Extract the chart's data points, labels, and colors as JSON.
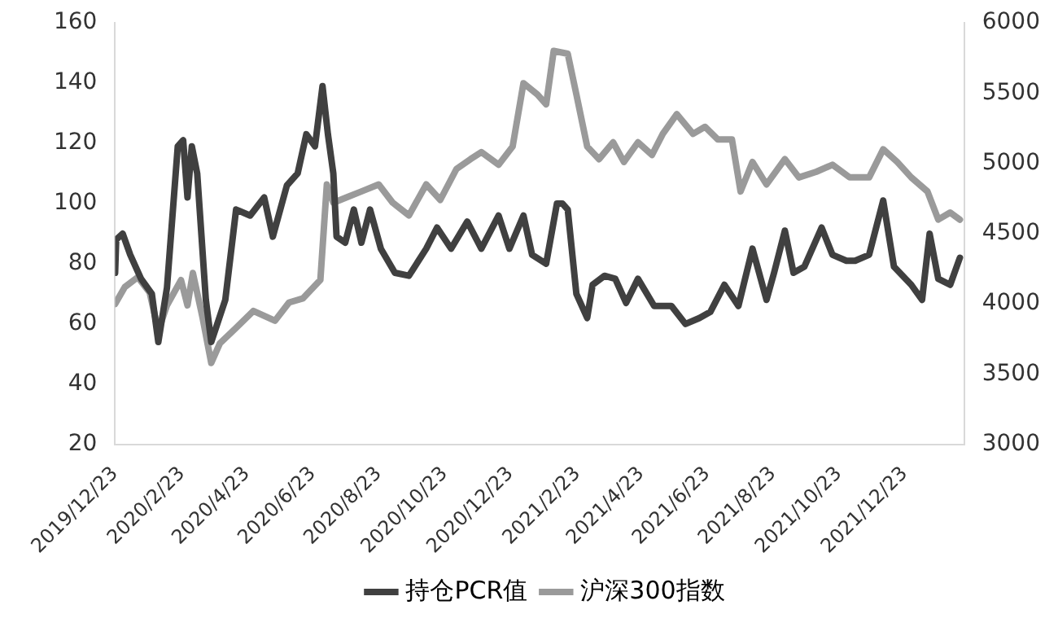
{
  "chart_data": {
    "type": "line",
    "xlim": [
      "2019-12-23",
      "2022-02-16"
    ],
    "xticks": [
      {
        "value": "2019-12-23",
        "label": "2019/12/23"
      },
      {
        "value": "2020-02-23",
        "label": "2020/2/23"
      },
      {
        "value": "2020-04-23",
        "label": "2020/4/23"
      },
      {
        "value": "2020-06-23",
        "label": "2020/6/23"
      },
      {
        "value": "2020-08-23",
        "label": "2020/8/23"
      },
      {
        "value": "2020-10-23",
        "label": "2020/10/23"
      },
      {
        "value": "2020-12-23",
        "label": "2020/12/23"
      },
      {
        "value": "2021-02-23",
        "label": "2021/2/23"
      },
      {
        "value": "2021-04-23",
        "label": "2021/4/23"
      },
      {
        "value": "2021-06-23",
        "label": "2021/6/23"
      },
      {
        "value": "2021-08-23",
        "label": "2021/8/23"
      },
      {
        "value": "2021-10-23",
        "label": "2021/10/23"
      },
      {
        "value": "2021-12-23",
        "label": "2021/12/23"
      }
    ],
    "ylim": [
      20,
      160
    ],
    "yticks": [
      20,
      40,
      60,
      80,
      100,
      120,
      140,
      160
    ],
    "y2lim": [
      3000,
      6000
    ],
    "y2ticks": [
      3000,
      3500,
      4000,
      4500,
      5000,
      5500,
      6000
    ],
    "grid": false,
    "legend": "bottom",
    "marker": "none",
    "line_style": "solid",
    "series": [
      {
        "name": "持仓PCR值",
        "color": "#404040",
        "axis": "y",
        "x": [
          "2019-12-23",
          "2019-12-24",
          "2019-12-30",
          "2020-01-06",
          "2020-01-16",
          "2020-01-26",
          "2020-02-01",
          "2020-02-09",
          "2020-02-19",
          "2020-02-24",
          "2020-02-28",
          "2020-03-03",
          "2020-03-08",
          "2020-03-16",
          "2020-03-21",
          "2020-04-03",
          "2020-04-13",
          "2020-04-26",
          "2020-05-09",
          "2020-05-17",
          "2020-05-30",
          "2020-06-09",
          "2020-06-17",
          "2020-06-25",
          "2020-07-02",
          "2020-07-07",
          "2020-07-12",
          "2020-07-15",
          "2020-07-23",
          "2020-07-31",
          "2020-08-07",
          "2020-08-15",
          "2020-08-25",
          "2020-09-07",
          "2020-09-20",
          "2020-10-06",
          "2020-10-16",
          "2020-10-29",
          "2020-11-13",
          "2020-11-26",
          "2020-12-12",
          "2020-12-22",
          "2021-01-04",
          "2021-01-12",
          "2021-01-25",
          "2021-02-04",
          "2021-02-09",
          "2021-02-14",
          "2021-02-22",
          "2021-03-04",
          "2021-03-09",
          "2021-03-20",
          "2021-03-30",
          "2021-04-09",
          "2021-04-20",
          "2021-05-05",
          "2021-05-21",
          "2021-06-03",
          "2021-06-16",
          "2021-06-26",
          "2021-07-09",
          "2021-07-22",
          "2021-08-04",
          "2021-08-17",
          "2021-08-24",
          "2021-09-03",
          "2021-09-11",
          "2021-09-21",
          "2021-10-07",
          "2021-10-17",
          "2021-10-30",
          "2021-11-07",
          "2021-11-20",
          "2021-12-03",
          "2021-12-13",
          "2021-12-29",
          "2022-01-08",
          "2022-01-15",
          "2022-01-23",
          "2022-02-03",
          "2022-02-12"
        ],
        "values": [
          77,
          88,
          90,
          83,
          75,
          70,
          54,
          72,
          119,
          121,
          102,
          119,
          110,
          68,
          54,
          68,
          98,
          96,
          102,
          89,
          106,
          110,
          123,
          119,
          139,
          123,
          110,
          89,
          87,
          98,
          87,
          98,
          85,
          77,
          76,
          85,
          92,
          85,
          94,
          85,
          96,
          85,
          96,
          83,
          80,
          100,
          100,
          98,
          70,
          62,
          73,
          76,
          75,
          67,
          75,
          66,
          66,
          60,
          62,
          64,
          73,
          66,
          85,
          68,
          77,
          91,
          77,
          79,
          92,
          83,
          81,
          81,
          83,
          101,
          79,
          73,
          68,
          90,
          75,
          73,
          82
        ]
      },
      {
        "name": "沪深300指数",
        "color": "#9a9a9a",
        "axis": "y2",
        "x": [
          "2019-12-23",
          "2020-01-01",
          "2020-01-13",
          "2020-01-24",
          "2020-02-01",
          "2020-02-09",
          "2020-02-22",
          "2020-02-28",
          "2020-03-04",
          "2020-03-13",
          "2020-03-21",
          "2020-03-29",
          "2020-04-13",
          "2020-04-29",
          "2020-05-19",
          "2020-06-01",
          "2020-06-14",
          "2020-06-30",
          "2020-07-06",
          "2020-07-12",
          "2020-07-25",
          "2020-08-07",
          "2020-08-23",
          "2020-09-05",
          "2020-09-20",
          "2020-10-06",
          "2020-10-19",
          "2020-11-03",
          "2020-11-16",
          "2020-11-26",
          "2020-12-12",
          "2020-12-25",
          "2021-01-04",
          "2021-01-17",
          "2021-01-25",
          "2021-02-01",
          "2021-02-14",
          "2021-02-22",
          "2021-03-04",
          "2021-03-15",
          "2021-03-28",
          "2021-04-07",
          "2021-04-20",
          "2021-05-03",
          "2021-05-13",
          "2021-05-26",
          "2021-06-10",
          "2021-06-21",
          "2021-07-03",
          "2021-07-16",
          "2021-07-24",
          "2021-08-04",
          "2021-08-17",
          "2021-09-03",
          "2021-09-16",
          "2021-10-02",
          "2021-10-17",
          "2021-11-02",
          "2021-11-20",
          "2021-12-03",
          "2021-12-16",
          "2021-12-29",
          "2022-01-13",
          "2022-01-23",
          "2022-02-03",
          "2022-02-12"
        ],
        "values": [
          4000,
          4120,
          4190,
          4080,
          3810,
          3990,
          4170,
          3990,
          4220,
          3900,
          3580,
          3720,
          3830,
          3950,
          3880,
          4010,
          4040,
          4170,
          4850,
          4720,
          4760,
          4800,
          4850,
          4720,
          4630,
          4850,
          4740,
          4960,
          5030,
          5080,
          4990,
          5120,
          5570,
          5490,
          5420,
          5800,
          5780,
          5490,
          5120,
          5030,
          5150,
          5010,
          5150,
          5060,
          5210,
          5350,
          5210,
          5260,
          5170,
          5170,
          4800,
          5010,
          4850,
          5030,
          4900,
          4940,
          4990,
          4900,
          4900,
          5100,
          5010,
          4900,
          4800,
          4600,
          4650,
          4600
        ]
      }
    ]
  }
}
